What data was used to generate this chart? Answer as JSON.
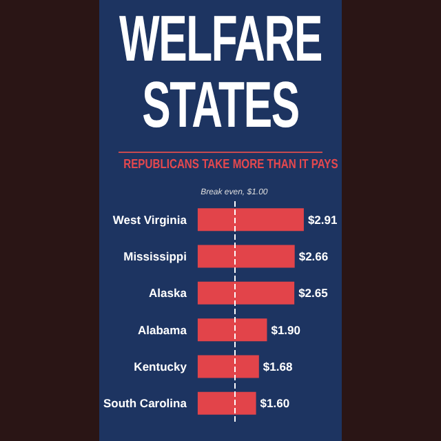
{
  "chart_data": {
    "type": "bar",
    "orientation": "horizontal",
    "title": "WELFARE STATES",
    "subtitle": "REPUBLICANS TAKE MORE THAN IT PAYS",
    "categories": [
      "West Virginia",
      "Mississippi",
      "Alaska",
      "Alabama",
      "Kentucky",
      "South Carolina"
    ],
    "values": [
      2.91,
      2.66,
      2.65,
      1.9,
      1.68,
      1.6
    ],
    "value_labels": [
      "$2.91",
      "$2.66",
      "$2.65",
      "$1.90",
      "$1.68",
      "$1.60"
    ],
    "color": "#e2444a",
    "ref_lines": [
      {
        "axis": "x",
        "value": 1.0,
        "label": "Break even, $1.00",
        "color": "#ffffff",
        "line_style": "dashed"
      }
    ]
  }
}
